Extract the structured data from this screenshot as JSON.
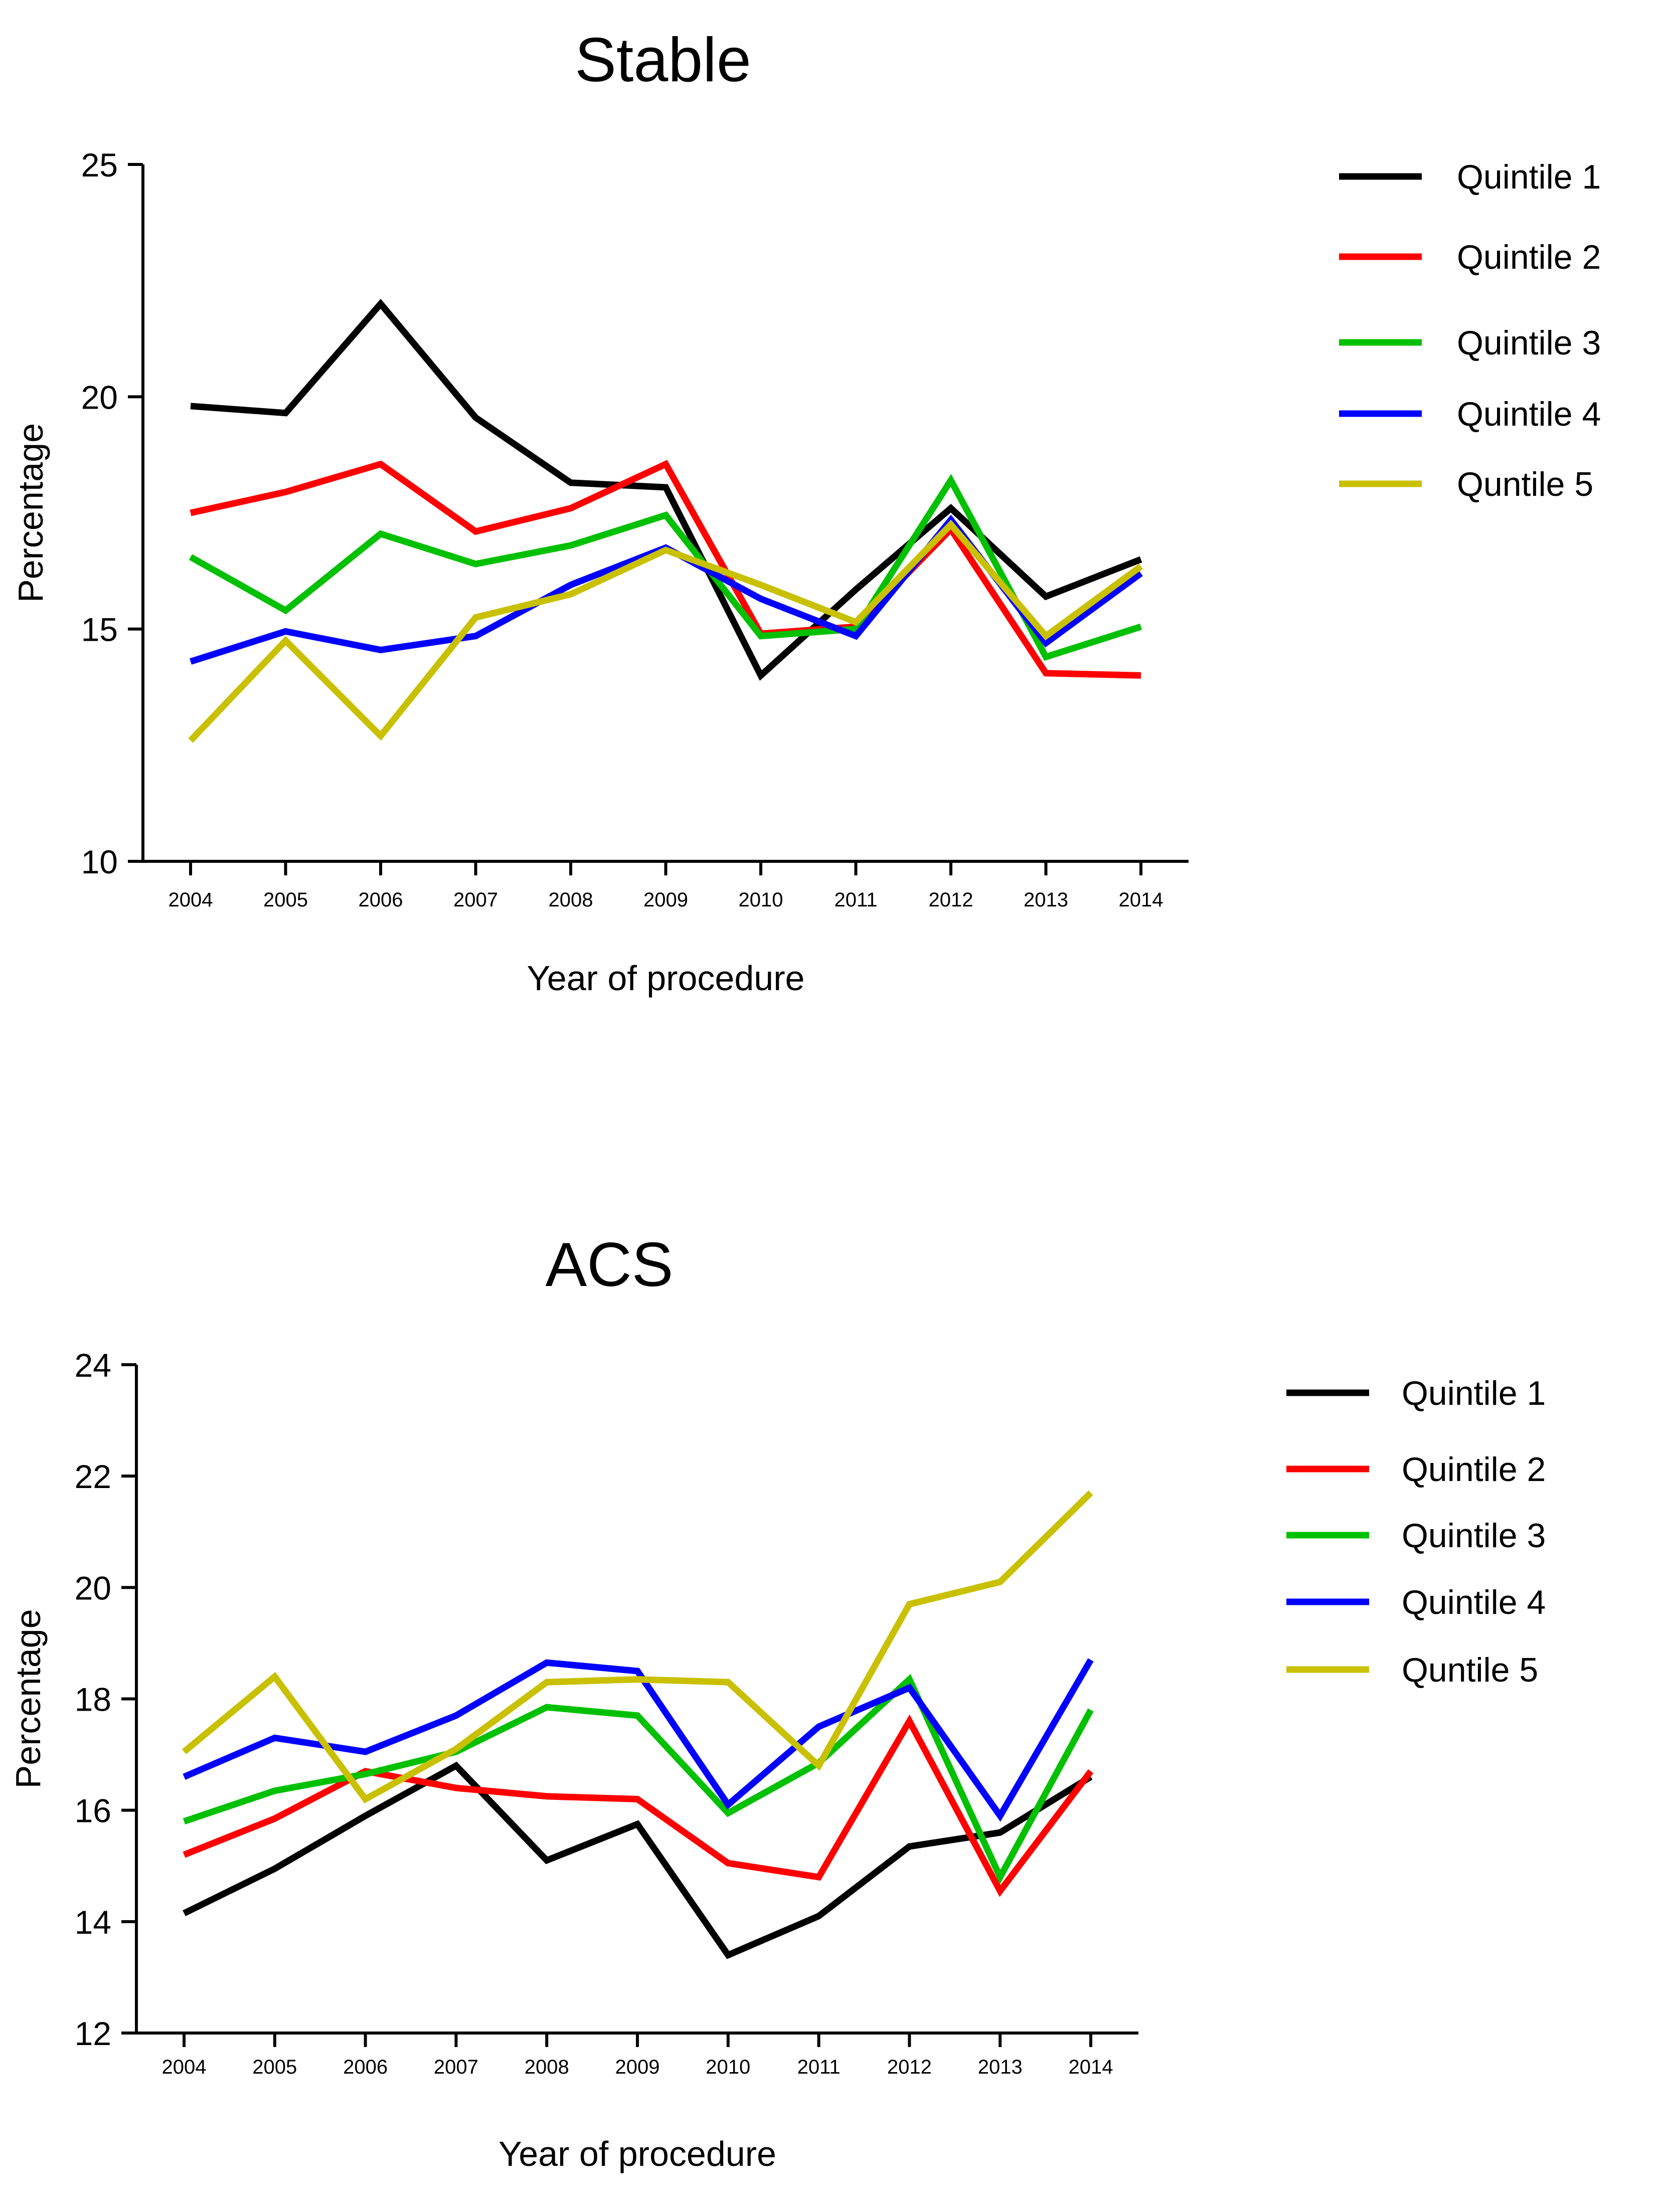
{
  "chart_data": [
    {
      "type": "line",
      "title": "Stable",
      "xlabel": "Year of procedure",
      "ylabel": "Percentage",
      "ylim": [
        10,
        25
      ],
      "yticks": [
        10,
        15,
        20,
        25
      ],
      "categories": [
        "2004",
        "2005",
        "2006",
        "2007",
        "2008",
        "2009",
        "2010",
        "2011",
        "2012",
        "2013",
        "2014"
      ],
      "grid": false,
      "legend_position": "right",
      "series": [
        {
          "name": "Quintile 1",
          "color": "#000000",
          "values": [
            19.8,
            19.65,
            22.0,
            19.55,
            18.15,
            18.05,
            14.0,
            15.85,
            17.6,
            15.7,
            16.5
          ]
        },
        {
          "name": "Quintile 2",
          "color": "#ff0000",
          "values": [
            17.5,
            17.95,
            18.55,
            17.1,
            17.6,
            18.55,
            14.9,
            15.05,
            17.15,
            14.05,
            14.0
          ]
        },
        {
          "name": "Quintile 3",
          "color": "#00c000",
          "values": [
            16.55,
            15.4,
            17.05,
            16.4,
            16.8,
            17.45,
            14.85,
            15.0,
            18.2,
            14.4,
            15.05
          ]
        },
        {
          "name": "Quintile 4",
          "color": "#0000ff",
          "values": [
            14.3,
            14.95,
            14.55,
            14.85,
            15.95,
            16.75,
            15.65,
            14.85,
            17.35,
            14.7,
            16.2
          ]
        },
        {
          "name": "Quntile 5",
          "color": "#c8c000",
          "values": [
            12.6,
            14.75,
            12.7,
            15.25,
            15.75,
            16.7,
            15.95,
            15.15,
            17.25,
            14.85,
            16.35
          ]
        }
      ]
    },
    {
      "type": "line",
      "title": "ACS",
      "xlabel": "Year of procedure",
      "ylabel": "Percentage",
      "ylim": [
        12,
        24
      ],
      "yticks": [
        12,
        14,
        16,
        18,
        20,
        22,
        24
      ],
      "categories": [
        "2004",
        "2005",
        "2006",
        "2007",
        "2008",
        "2009",
        "2010",
        "2011",
        "2012",
        "2013",
        "2014"
      ],
      "grid": false,
      "legend_position": "right",
      "series": [
        {
          "name": "Quintile 1",
          "color": "#000000",
          "values": [
            14.15,
            14.95,
            15.9,
            16.8,
            15.1,
            15.75,
            13.4,
            14.1,
            15.35,
            15.6,
            16.6
          ]
        },
        {
          "name": "Quintile 2",
          "color": "#ff0000",
          "values": [
            15.2,
            15.85,
            16.7,
            16.4,
            16.25,
            16.2,
            15.05,
            14.8,
            17.6,
            14.55,
            16.7
          ]
        },
        {
          "name": "Quintile 3",
          "color": "#00c000",
          "values": [
            15.8,
            16.35,
            16.65,
            17.05,
            17.85,
            17.7,
            15.95,
            16.85,
            18.35,
            14.8,
            17.8
          ]
        },
        {
          "name": "Quintile 4",
          "color": "#0000ff",
          "values": [
            16.6,
            17.3,
            17.05,
            17.7,
            18.65,
            18.5,
            16.1,
            17.5,
            18.2,
            15.9,
            18.7
          ]
        },
        {
          "name": "Quntile 5",
          "color": "#c8c000",
          "values": [
            17.05,
            18.4,
            16.2,
            17.1,
            18.3,
            18.35,
            18.3,
            16.8,
            19.7,
            20.1,
            21.7
          ]
        }
      ]
    }
  ]
}
